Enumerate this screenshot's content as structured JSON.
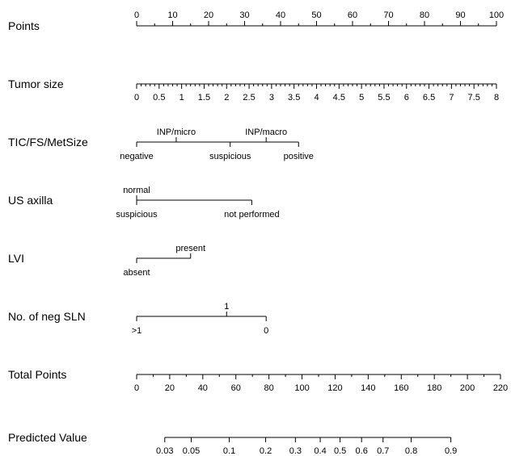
{
  "chart_data": {
    "type": "nomogram",
    "rows": [
      {
        "label": "Points",
        "kind": "axis",
        "range": [
          0,
          100
        ],
        "ticks": [
          "0",
          "10",
          "20",
          "30",
          "40",
          "50",
          "60",
          "70",
          "80",
          "90",
          "100"
        ],
        "tick_values": [
          0,
          10,
          20,
          30,
          40,
          50,
          60,
          70,
          80,
          90,
          100
        ],
        "labels_above": true
      },
      {
        "label": "Tumor size",
        "kind": "axis",
        "range": [
          0,
          8
        ],
        "ticks": [
          "0",
          "0.5",
          "1",
          "1.5",
          "2",
          "2.5",
          "3",
          "3.5",
          "4",
          "4.5",
          "5",
          "5.5",
          "6",
          "6.5",
          "7",
          "7.5",
          "8"
        ],
        "tick_values": [
          0,
          0.5,
          1,
          1.5,
          2,
          2.5,
          3,
          3.5,
          4,
          4.5,
          5,
          5.5,
          6,
          6.5,
          7,
          7.5,
          8
        ],
        "labels_above": false,
        "points_range": [
          0,
          100
        ]
      },
      {
        "label": "TIC/FS/MetSize",
        "kind": "categorical",
        "levels": [
          {
            "name": "negative",
            "points": 0,
            "position": "below"
          },
          {
            "name": "INP/micro",
            "points": 11,
            "position": "above"
          },
          {
            "name": "suspicious",
            "points": 26,
            "position": "below"
          },
          {
            "name": "INP/macro",
            "points": 36,
            "position": "above"
          },
          {
            "name": "positive",
            "points": 45,
            "position": "below"
          }
        ]
      },
      {
        "label": "US axilla",
        "kind": "categorical",
        "levels": [
          {
            "name": "normal",
            "points": 0,
            "position": "above"
          },
          {
            "name": "suspicious",
            "points": 0,
            "position": "below"
          },
          {
            "name": "not performed",
            "points": 32,
            "position": "below"
          }
        ]
      },
      {
        "label": "LVI",
        "kind": "categorical",
        "levels": [
          {
            "name": "absent",
            "points": 0,
            "position": "below"
          },
          {
            "name": "present",
            "points": 15,
            "position": "above"
          }
        ]
      },
      {
        "label": "No. of neg SLN",
        "kind": "categorical",
        "levels": [
          {
            "name": ">1",
            "points": 0,
            "position": "below"
          },
          {
            "name": "1",
            "points": 25,
            "position": "above"
          },
          {
            "name": "0",
            "points": 36,
            "position": "below"
          }
        ]
      },
      {
        "label": "Total Points",
        "kind": "axis",
        "range": [
          0,
          220
        ],
        "ticks": [
          "0",
          "20",
          "40",
          "60",
          "80",
          "100",
          "120",
          "140",
          "160",
          "180",
          "200",
          "220"
        ],
        "tick_values": [
          0,
          20,
          40,
          60,
          80,
          100,
          120,
          140,
          160,
          180,
          200,
          220
        ],
        "labels_above": false,
        "total_points_range": [
          0,
          220
        ]
      },
      {
        "label": "Predicted Value",
        "kind": "prob_axis",
        "ticks": [
          "0.03",
          "0.05",
          "0.1",
          "0.2",
          "0.3",
          "0.4",
          "0.5",
          "0.6",
          "0.7",
          "0.8",
          "0.9"
        ],
        "tick_total_points": [
          17,
          33,
          56,
          78,
          96,
          111,
          123,
          136,
          149,
          166,
          190
        ],
        "labels_above": false
      }
    ]
  }
}
